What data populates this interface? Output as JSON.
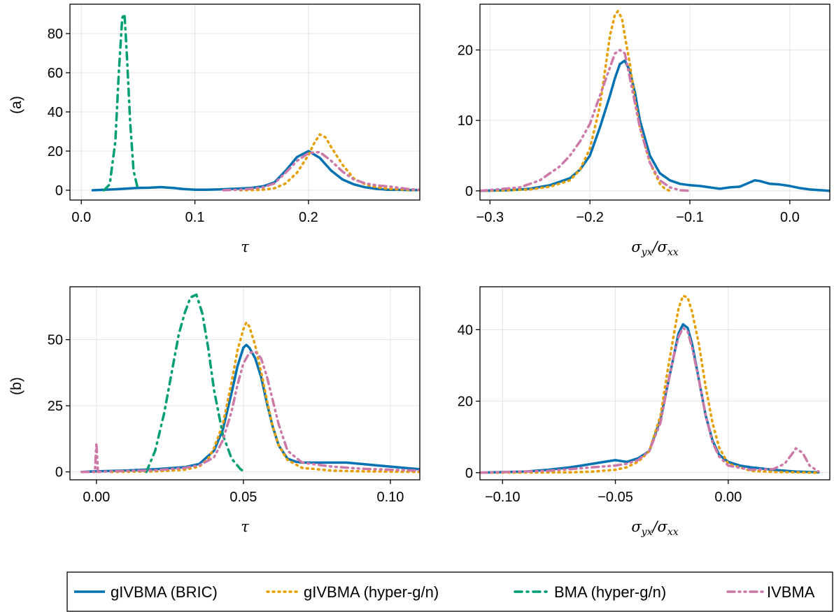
{
  "legend": {
    "items": [
      {
        "label": "gIVBMA (BRIC)",
        "color": "#0072B2",
        "dash": "solid"
      },
      {
        "label": "gIVBMA (hyper-g/n)",
        "color": "#E69F00",
        "dash": "dot"
      },
      {
        "label": "BMA (hyper-g/n)",
        "color": "#009E73",
        "dash": "dashdot"
      },
      {
        "label": "IVBMA",
        "color": "#CC79A7",
        "dash": "dashdotdot"
      }
    ]
  },
  "row_labels": [
    "(a)",
    "(b)"
  ],
  "chart_data": [
    {
      "type": "line",
      "row_label": "(a)",
      "xlabel": "τ",
      "ylabel": "",
      "xlim": [
        -0.01,
        0.298
      ],
      "ylim": [
        -5,
        95
      ],
      "xticks": [
        {
          "v": 0.0,
          "t": "0.0"
        },
        {
          "v": 0.1,
          "t": "0.1"
        },
        {
          "v": 0.2,
          "t": "0.2"
        }
      ],
      "yticks": [
        {
          "v": 0,
          "t": "0"
        },
        {
          "v": 20,
          "t": "20"
        },
        {
          "v": 40,
          "t": "40"
        },
        {
          "v": 60,
          "t": "60"
        },
        {
          "v": 80,
          "t": "80"
        }
      ],
      "grid": true,
      "series": [
        {
          "name": "gIVBMA (BRIC)",
          "x": [
            0.01,
            0.03,
            0.05,
            0.06,
            0.07,
            0.08,
            0.09,
            0.1,
            0.11,
            0.12,
            0.13,
            0.14,
            0.15,
            0.16,
            0.17,
            0.18,
            0.19,
            0.2,
            0.21,
            0.22,
            0.23,
            0.24,
            0.25,
            0.26,
            0.27,
            0.28,
            0.29,
            0.298
          ],
          "y": [
            0,
            0.5,
            1.2,
            1.3,
            1.6,
            1.2,
            0.6,
            0.3,
            0.3,
            0.4,
            0.6,
            0.9,
            1.2,
            2.0,
            4.0,
            10.0,
            17.0,
            20.0,
            16.5,
            10.0,
            5.5,
            3.0,
            1.5,
            0.7,
            0.3,
            0.2,
            0.1,
            0.1
          ]
        },
        {
          "name": "gIVBMA (hyper-g/n)",
          "x": [
            0.14,
            0.15,
            0.16,
            0.17,
            0.18,
            0.19,
            0.2,
            0.205,
            0.21,
            0.215,
            0.22,
            0.23,
            0.24,
            0.25,
            0.26,
            0.27,
            0.28,
            0.29,
            0.298
          ],
          "y": [
            0,
            0.1,
            0.3,
            1.0,
            3.5,
            9.0,
            18.0,
            24.0,
            28.5,
            27.0,
            22.0,
            13.0,
            6.0,
            3.0,
            1.5,
            0.8,
            0.4,
            0.2,
            0.1
          ]
        },
        {
          "name": "BMA (hyper-g/n)",
          "x": [
            0.02,
            0.025,
            0.03,
            0.033,
            0.036,
            0.038,
            0.04,
            0.043,
            0.046,
            0.05
          ],
          "y": [
            0,
            3,
            25,
            60,
            88,
            90,
            70,
            35,
            10,
            0
          ]
        },
        {
          "name": "IVBMA",
          "x": [
            0.125,
            0.14,
            0.15,
            0.16,
            0.17,
            0.18,
            0.19,
            0.2,
            0.21,
            0.22,
            0.23,
            0.24,
            0.25,
            0.26,
            0.27,
            0.28,
            0.29,
            0.298
          ],
          "y": [
            0,
            0.3,
            0.8,
            1.5,
            3.5,
            9.0,
            15.0,
            19.0,
            19.5,
            15.0,
            9.5,
            5.5,
            3.5,
            2.5,
            2.0,
            1.2,
            0.5,
            0.2
          ]
        }
      ]
    },
    {
      "type": "line",
      "row_label": "",
      "xlabel": "σyx/σxx",
      "ylabel": "",
      "xlim": [
        -0.31,
        0.04
      ],
      "ylim": [
        -1.3,
        26.5
      ],
      "xticks": [
        {
          "v": -0.3,
          "t": "−0.3"
        },
        {
          "v": -0.2,
          "t": "−0.2"
        },
        {
          "v": -0.1,
          "t": "−0.1"
        },
        {
          "v": 0.0,
          "t": "0.0"
        }
      ],
      "yticks": [
        {
          "v": 0,
          "t": "0"
        },
        {
          "v": 10,
          "t": "10"
        },
        {
          "v": 20,
          "t": "20"
        }
      ],
      "grid": true,
      "series": [
        {
          "name": "gIVBMA (BRIC)",
          "x": [
            -0.31,
            -0.28,
            -0.26,
            -0.24,
            -0.22,
            -0.21,
            -0.2,
            -0.19,
            -0.18,
            -0.175,
            -0.17,
            -0.165,
            -0.16,
            -0.155,
            -0.15,
            -0.14,
            -0.13,
            -0.12,
            -0.11,
            -0.1,
            -0.09,
            -0.08,
            -0.07,
            -0.06,
            -0.05,
            -0.04,
            -0.035,
            -0.03,
            -0.025,
            -0.02,
            -0.01,
            0.0,
            0.01,
            0.02,
            0.03,
            0.04
          ],
          "y": [
            0,
            0.1,
            0.3,
            0.8,
            1.8,
            3.0,
            5.0,
            9.0,
            13.5,
            16.0,
            18.0,
            18.5,
            17.0,
            14.0,
            10.0,
            5.0,
            2.5,
            1.5,
            1.0,
            0.8,
            0.7,
            0.5,
            0.3,
            0.5,
            0.6,
            1.2,
            1.5,
            1.4,
            1.2,
            1.0,
            0.9,
            0.7,
            0.4,
            0.2,
            0.1,
            0.0
          ]
        },
        {
          "name": "gIVBMA (hyper-g/n)",
          "x": [
            -0.31,
            -0.26,
            -0.24,
            -0.22,
            -0.21,
            -0.2,
            -0.19,
            -0.185,
            -0.18,
            -0.175,
            -0.172,
            -0.168,
            -0.165,
            -0.16,
            -0.155,
            -0.15,
            -0.14,
            -0.13,
            -0.125,
            -0.12
          ],
          "y": [
            0,
            0.2,
            0.6,
            1.5,
            3.0,
            6.0,
            12.0,
            17.0,
            22.0,
            25.0,
            25.5,
            24.5,
            22.0,
            18.0,
            13.0,
            9.0,
            4.0,
            1.0,
            0.3,
            0.0
          ]
        },
        {
          "name": "IVBMA",
          "x": [
            -0.31,
            -0.27,
            -0.25,
            -0.24,
            -0.23,
            -0.22,
            -0.21,
            -0.2,
            -0.19,
            -0.18,
            -0.175,
            -0.17,
            -0.165,
            -0.16,
            -0.15,
            -0.14,
            -0.13,
            -0.12,
            -0.11,
            -0.1
          ],
          "y": [
            0,
            0.5,
            1.5,
            2.5,
            3.5,
            5.0,
            7.0,
            9.5,
            13.5,
            17.5,
            19.5,
            20.0,
            19.5,
            16.0,
            9.0,
            4.0,
            1.5,
            0.5,
            0.1,
            0.0
          ]
        }
      ]
    },
    {
      "type": "line",
      "row_label": "(b)",
      "xlabel": "τ",
      "ylabel": "",
      "xlim": [
        -0.009,
        0.11
      ],
      "ylim": [
        -3,
        70
      ],
      "xticks": [
        {
          "v": 0.0,
          "t": "0.00"
        },
        {
          "v": 0.05,
          "t": "0.05"
        },
        {
          "v": 0.1,
          "t": "0.10"
        }
      ],
      "yticks": [
        {
          "v": 0,
          "t": "0"
        },
        {
          "v": 25,
          "t": "25"
        },
        {
          "v": 50,
          "t": "50"
        }
      ],
      "grid": true,
      "series": [
        {
          "name": "gIVBMA (BRIC)",
          "x": [
            -0.005,
            0.0,
            0.01,
            0.02,
            0.03,
            0.035,
            0.04,
            0.043,
            0.046,
            0.048,
            0.05,
            0.051,
            0.052,
            0.054,
            0.056,
            0.058,
            0.06,
            0.062,
            0.065,
            0.068,
            0.07,
            0.075,
            0.08,
            0.085,
            0.09,
            0.095,
            0.1,
            0.105,
            0.11
          ],
          "y": [
            0,
            0.2,
            0.5,
            1.0,
            1.8,
            3.0,
            8.0,
            16.0,
            30.0,
            40.0,
            47.0,
            48.0,
            47.0,
            43.0,
            36.0,
            26.0,
            17.0,
            10.0,
            5.0,
            3.8,
            3.5,
            3.5,
            3.5,
            3.5,
            3.0,
            2.5,
            2.0,
            1.5,
            1.0
          ]
        },
        {
          "name": "gIVBMA (hyper-g/n)",
          "x": [
            0.005,
            0.02,
            0.03,
            0.035,
            0.038,
            0.04,
            0.043,
            0.046,
            0.048,
            0.05,
            0.051,
            0.052,
            0.054,
            0.056,
            0.058,
            0.06,
            0.062,
            0.065,
            0.07,
            0.08,
            0.09,
            0.1,
            0.11
          ],
          "y": [
            0,
            0.2,
            0.8,
            2.0,
            5.0,
            9.0,
            18.0,
            34.0,
            46.0,
            54.0,
            56.5,
            55.0,
            48.0,
            38.0,
            27.0,
            17.0,
            10.0,
            4.5,
            1.5,
            0.5,
            0.2,
            0.1,
            0.0
          ]
        },
        {
          "name": "BMA (hyper-g/n)",
          "x": [
            0.017,
            0.02,
            0.023,
            0.026,
            0.028,
            0.03,
            0.032,
            0.034,
            0.036,
            0.038,
            0.04,
            0.043,
            0.046,
            0.049,
            0.05
          ],
          "y": [
            0,
            8,
            22,
            40,
            52,
            60,
            66,
            67,
            60,
            47,
            31,
            14,
            5,
            1,
            0.3
          ]
        },
        {
          "name": "IVBMA",
          "x": [
            -0.005,
            -0.0005,
            0.0,
            0.0005,
            0.005,
            0.02,
            0.03,
            0.035,
            0.04,
            0.043,
            0.046,
            0.048,
            0.05,
            0.052,
            0.054,
            0.056,
            0.058,
            0.06,
            0.062,
            0.065,
            0.07,
            0.08,
            0.09,
            0.1,
            0.11
          ],
          "y": [
            0,
            0,
            11,
            0,
            0.2,
            0.6,
            1.5,
            2.5,
            5.5,
            12.0,
            23.0,
            33.0,
            41.0,
            45.0,
            45.5,
            43.0,
            36.0,
            27.0,
            18.0,
            8.0,
            3.5,
            2.0,
            1.2,
            0.8,
            0.5
          ]
        }
      ]
    },
    {
      "type": "line",
      "row_label": "",
      "xlabel": "σyx/σxx",
      "ylabel": "",
      "xlim": [
        -0.11,
        0.045
      ],
      "ylim": [
        -2,
        52
      ],
      "xticks": [
        {
          "v": -0.1,
          "t": "−0.10"
        },
        {
          "v": -0.05,
          "t": "−0.05"
        },
        {
          "v": 0.0,
          "t": "0.00"
        }
      ],
      "yticks": [
        {
          "v": 0,
          "t": "0"
        },
        {
          "v": 20,
          "t": "20"
        },
        {
          "v": 40,
          "t": "40"
        }
      ],
      "grid": true,
      "series": [
        {
          "name": "gIVBMA (BRIC)",
          "x": [
            -0.11,
            -0.09,
            -0.08,
            -0.07,
            -0.065,
            -0.06,
            -0.055,
            -0.05,
            -0.045,
            -0.04,
            -0.035,
            -0.03,
            -0.027,
            -0.024,
            -0.022,
            -0.02,
            -0.018,
            -0.016,
            -0.013,
            -0.01,
            -0.007,
            -0.004,
            0.0,
            0.005,
            0.01,
            0.02,
            0.03,
            0.04
          ],
          "y": [
            0,
            0.3,
            0.8,
            1.5,
            2.0,
            2.5,
            3.0,
            3.5,
            3.0,
            4.0,
            6.0,
            15.0,
            24.0,
            33.0,
            39.0,
            41.5,
            40.5,
            36.0,
            26.0,
            16.0,
            9.0,
            5.0,
            3.0,
            2.0,
            1.5,
            0.8,
            0.3,
            0.1
          ]
        },
        {
          "name": "gIVBMA (hyper-g/n)",
          "x": [
            -0.11,
            -0.07,
            -0.06,
            -0.05,
            -0.045,
            -0.04,
            -0.035,
            -0.03,
            -0.027,
            -0.024,
            -0.022,
            -0.02,
            -0.018,
            -0.016,
            -0.013,
            -0.01,
            -0.007,
            -0.004,
            0.0,
            0.01,
            0.02,
            0.03,
            0.04
          ],
          "y": [
            0,
            0.1,
            0.3,
            0.8,
            1.5,
            3.0,
            6.0,
            16.0,
            28.0,
            39.0,
            46.0,
            49.5,
            49.0,
            45.0,
            36.0,
            24.0,
            14.0,
            7.0,
            2.5,
            0.5,
            0.2,
            0.1,
            0.0
          ]
        },
        {
          "name": "IVBMA",
          "x": [
            -0.11,
            -0.08,
            -0.07,
            -0.06,
            -0.05,
            -0.045,
            -0.04,
            -0.035,
            -0.03,
            -0.027,
            -0.024,
            -0.022,
            -0.02,
            -0.018,
            -0.016,
            -0.013,
            -0.01,
            -0.007,
            -0.004,
            0.0,
            0.01,
            0.02,
            0.025,
            0.028,
            0.03,
            0.033,
            0.036,
            0.04
          ],
          "y": [
            0,
            0.5,
            1.0,
            1.5,
            2.0,
            2.5,
            3.5,
            6.0,
            14.0,
            24.0,
            33.0,
            38.0,
            40.5,
            39.5,
            35.0,
            26.0,
            16.0,
            8.5,
            4.5,
            2.0,
            0.8,
            1.0,
            2.5,
            5.0,
            6.8,
            5.5,
            2.0,
            0.3
          ]
        }
      ]
    }
  ]
}
